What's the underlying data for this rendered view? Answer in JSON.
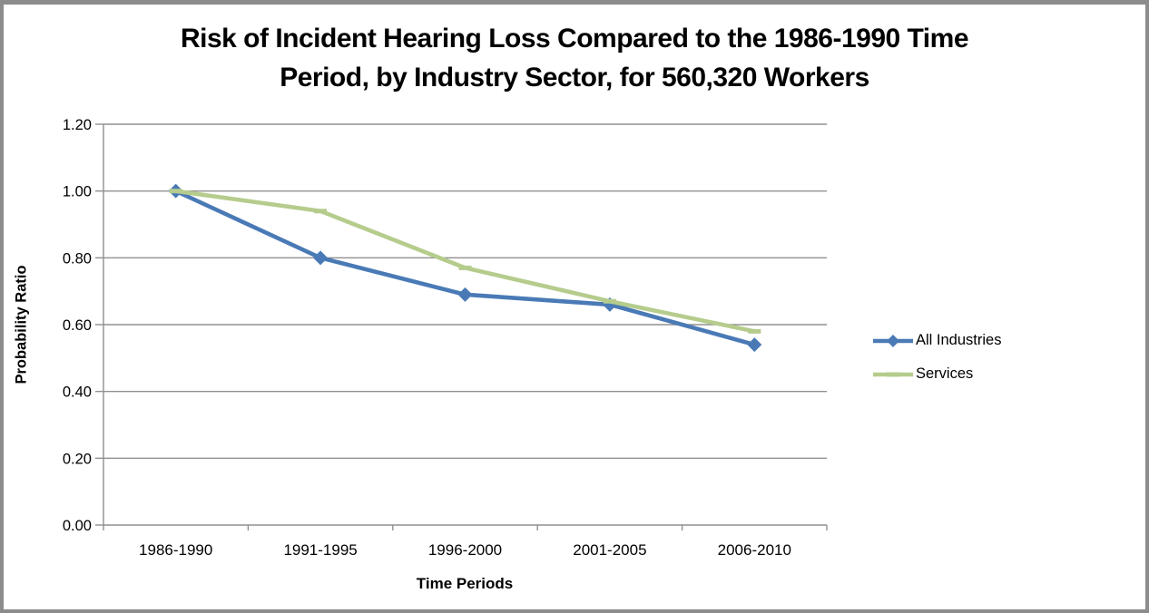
{
  "chart_data": {
    "type": "line",
    "title": "Risk of Incident Hearing Loss Compared to the 1986-1990 Time Period, by Industry Sector, for 560,320 Workers",
    "title_lines": [
      "Risk of Incident Hearing Loss Compared to the 1986-1990 Time",
      "Period, by Industry Sector, for 560,320 Workers"
    ],
    "xlabel": "Time Periods",
    "ylabel": "Probability Ratio",
    "categories": [
      "1986-1990",
      "1991-1995",
      "1996-2000",
      "2001-2005",
      "2006-2010"
    ],
    "series": [
      {
        "name": "All Industries",
        "color": "#4A7AB6",
        "marker": "diamond",
        "values": [
          1.0,
          0.8,
          0.69,
          0.66,
          0.54
        ]
      },
      {
        "name": "Services",
        "color": "#B5CC8D",
        "marker": "dash",
        "values": [
          1.0,
          0.94,
          0.77,
          0.67,
          0.58
        ]
      }
    ],
    "ylim": [
      0.0,
      1.2
    ],
    "ytick_labels": [
      "0.00",
      "0.20",
      "0.40",
      "0.60",
      "0.80",
      "1.00",
      "1.20"
    ],
    "grid": true,
    "legend_position": "right",
    "axis_color": "#909090",
    "text_color": "#000000",
    "background": "#ffffff",
    "border_color": "#8c8c8c"
  }
}
